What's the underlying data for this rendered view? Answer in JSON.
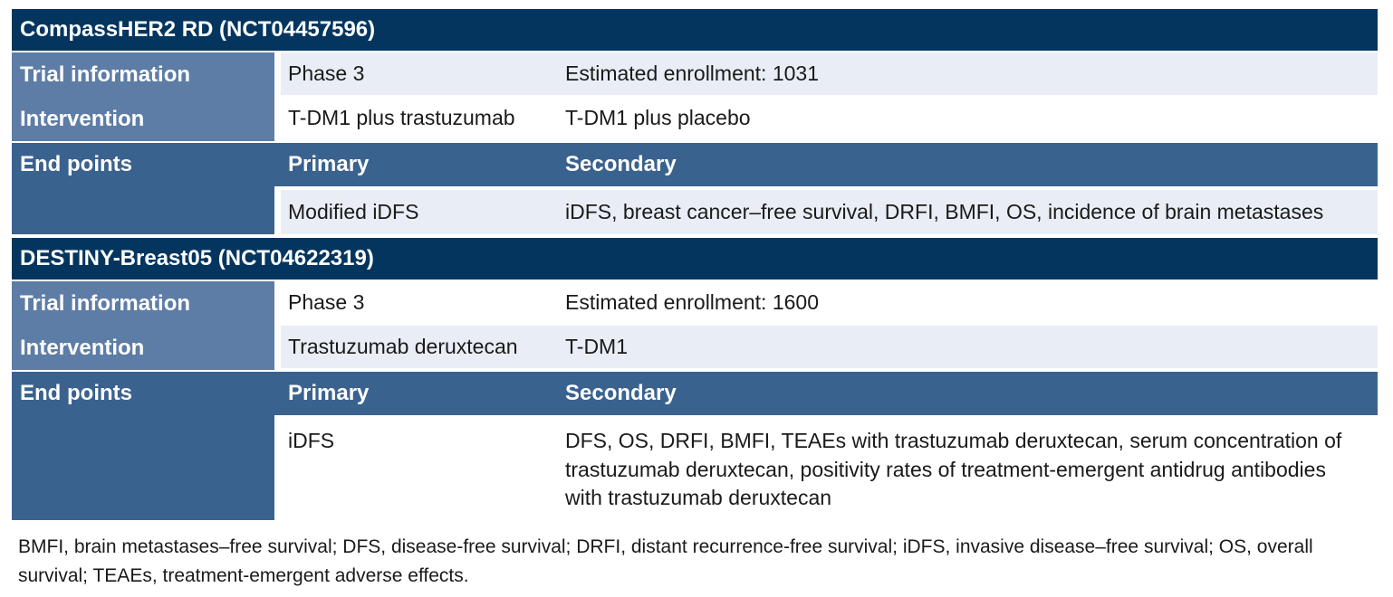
{
  "colors": {
    "navy_title_band": "#03355e",
    "slate_label_column": "#5e7da6",
    "endpoints_blue": "#3a628f",
    "light_row": "#e9eef6",
    "body_text": "#1a1a1a"
  },
  "table": {
    "trials": [
      {
        "title": "CompassHER2 RD (NCT04457596)",
        "trial_information": {
          "label": "Trial information",
          "phase": "Phase 3",
          "enrollment": "Estimated enrollment: 1031"
        },
        "intervention": {
          "label": "Intervention",
          "arm1": "T-DM1 plus trastuzumab",
          "arm2": "T-DM1 plus placebo"
        },
        "end_points": {
          "label": "End points",
          "primary_header": "Primary",
          "secondary_header": "Secondary",
          "primary": "Modified iDFS",
          "secondary": "iDFS, breast cancer–free survival, DRFI, BMFI, OS, incidence of brain metastases"
        }
      },
      {
        "title": "DESTINY-Breast05 (NCT04622319)",
        "trial_information": {
          "label": "Trial information",
          "phase": "Phase 3",
          "enrollment": "Estimated enrollment: 1600"
        },
        "intervention": {
          "label": "Intervention",
          "arm1": "Trastuzumab deruxtecan",
          "arm2": "T-DM1"
        },
        "end_points": {
          "label": "End points",
          "primary_header": "Primary",
          "secondary_header": "Secondary",
          "primary": "iDFS",
          "secondary": "DFS, OS, DRFI, BMFI, TEAEs with trastuzumab deruxtecan, serum concentration of trastuzumab deruxtecan, positivity rates of treatment-emergent antidrug antibodies with trastuzumab deruxtecan"
        }
      }
    ],
    "footnote": "BMFI, brain metastases–free survival; DFS, disease-free survival; DRFI, distant recurrence-free survival; iDFS, invasive disease–free survival; OS, overall survival; TEAEs, treatment-emergent adverse effects."
  }
}
